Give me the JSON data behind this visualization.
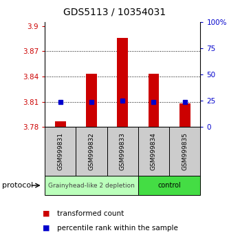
{
  "title": "GDS5113 / 10354031",
  "samples": [
    "GSM999831",
    "GSM999832",
    "GSM999833",
    "GSM999834",
    "GSM999835"
  ],
  "bar_values": [
    3.787,
    3.843,
    3.886,
    3.843,
    3.808
  ],
  "dot_values": [
    3.81,
    3.81,
    3.811,
    3.81,
    3.81
  ],
  "bar_bottom": 3.78,
  "ylim_left": [
    3.78,
    3.905
  ],
  "ylim_right": [
    0,
    100
  ],
  "yticks_left": [
    3.78,
    3.81,
    3.84,
    3.87,
    3.9
  ],
  "ytick_labels_left": [
    "3.78",
    "3.81",
    "3.84",
    "3.87",
    "3.9"
  ],
  "yticks_right": [
    0,
    25,
    50,
    75,
    100
  ],
  "ytick_labels_right": [
    "0",
    "25",
    "50",
    "75",
    "100%"
  ],
  "dotted_lines": [
    3.81,
    3.84,
    3.87
  ],
  "group1_label": "Grainyhead-like 2 depletion",
  "group2_label": "control",
  "protocol_label": "protocol",
  "group1_color": "#bbffbb",
  "group2_color": "#44dd44",
  "bar_color": "#cc0000",
  "dot_color": "#0000cc",
  "tick_color_left": "#cc0000",
  "tick_color_right": "#0000cc",
  "sample_box_color": "#cccccc",
  "legend_bar_label": "transformed count",
  "legend_dot_label": "percentile rank within the sample",
  "title_fontsize": 10,
  "axis_fontsize": 7.5,
  "sample_fontsize": 6.5,
  "group_fontsize": 7,
  "legend_fontsize": 8
}
